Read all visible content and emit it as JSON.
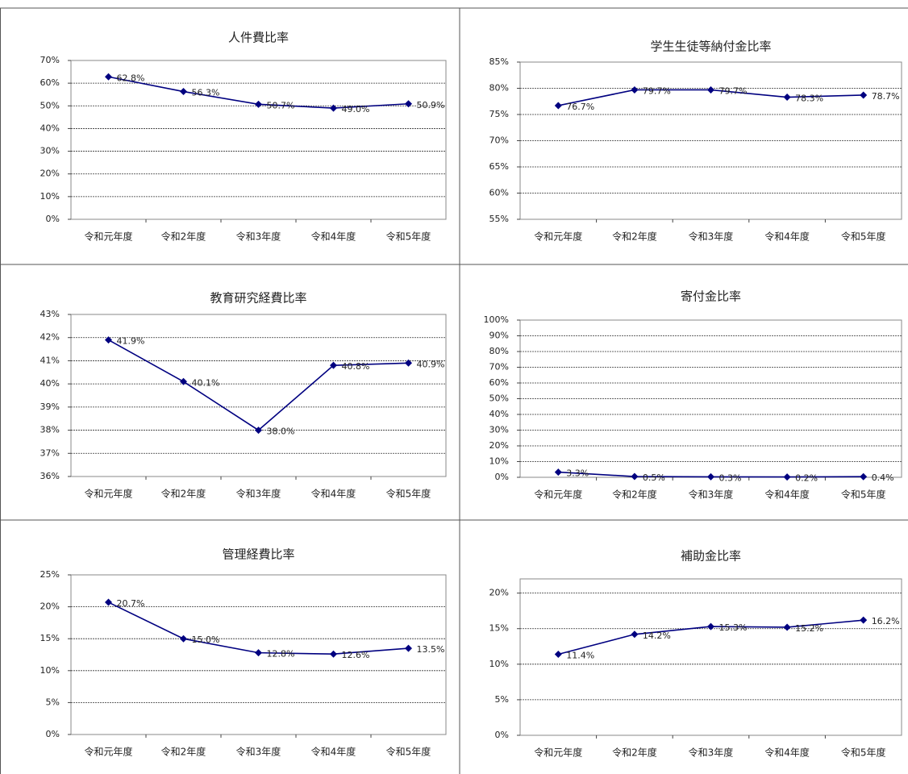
{
  "chart_data": [
    {
      "type": "line",
      "title": "人件費比率",
      "categories": [
        "令和元年度",
        "令和2年度",
        "令和3年度",
        "令和4年度",
        "令和5年度"
      ],
      "values": [
        62.8,
        56.3,
        50.7,
        49.0,
        50.9
      ],
      "value_labels": [
        "62.8%",
        "56.3%",
        "50.7%",
        "49.0%",
        "50.9%"
      ],
      "color": "#000080",
      "ylim": [
        0,
        70
      ],
      "yticks": [
        {
          "value": 0,
          "label": "0%"
        },
        {
          "value": 10,
          "label": "10%"
        },
        {
          "value": 20,
          "label": "20%"
        },
        {
          "value": 30,
          "label": "30%"
        },
        {
          "value": 40,
          "label": "40%"
        },
        {
          "value": 50,
          "label": "50%"
        },
        {
          "value": 60,
          "label": "60%"
        },
        {
          "value": 70,
          "label": "70%"
        }
      ],
      "grid": true
    },
    {
      "type": "line",
      "title": "学生生徒等納付金比率",
      "categories": [
        "令和元年度",
        "令和2年度",
        "令和3年度",
        "令和4年度",
        "令和5年度"
      ],
      "values": [
        76.7,
        79.7,
        79.7,
        78.3,
        78.7
      ],
      "value_labels": [
        "76.7%",
        "79.7%",
        "79.7%",
        "78.3%",
        "78.7%"
      ],
      "color": "#000080",
      "ylim": [
        55,
        85
      ],
      "yticks": [
        {
          "value": 55,
          "label": "55%"
        },
        {
          "value": 60,
          "label": "60%"
        },
        {
          "value": 65,
          "label": "65%"
        },
        {
          "value": 70,
          "label": "70%"
        },
        {
          "value": 75,
          "label": "75%"
        },
        {
          "value": 80,
          "label": "80%"
        },
        {
          "value": 85,
          "label": "85%"
        }
      ],
      "grid": true
    },
    {
      "type": "line",
      "title": "教育研究経費比率",
      "categories": [
        "令和元年度",
        "令和2年度",
        "令和3年度",
        "令和4年度",
        "令和5年度"
      ],
      "values": [
        41.9,
        40.1,
        38.0,
        40.8,
        40.9
      ],
      "value_labels": [
        "41.9%",
        "40.1%",
        "38.0%",
        "40.8%",
        "40.9%"
      ],
      "color": "#000080",
      "ylim": [
        36,
        43
      ],
      "yticks": [
        {
          "value": 36,
          "label": "36%"
        },
        {
          "value": 37,
          "label": "37%"
        },
        {
          "value": 38,
          "label": "38%"
        },
        {
          "value": 39,
          "label": "39%"
        },
        {
          "value": 40,
          "label": "40%"
        },
        {
          "value": 41,
          "label": "41%"
        },
        {
          "value": 42,
          "label": "42%"
        },
        {
          "value": 43,
          "label": "43%"
        }
      ],
      "grid": true
    },
    {
      "type": "line",
      "title": "寄付金比率",
      "categories": [
        "令和元年度",
        "令和2年度",
        "令和3年度",
        "令和4年度",
        "令和5年度"
      ],
      "values": [
        3.3,
        0.5,
        0.3,
        0.2,
        0.4
      ],
      "value_labels": [
        "3.3%",
        "0.5%",
        "0.3%",
        "0.2%",
        "0.4%"
      ],
      "color": "#000080",
      "ylim": [
        0,
        100
      ],
      "yticks": [
        {
          "value": 0,
          "label": "0%"
        },
        {
          "value": 10,
          "label": "10%"
        },
        {
          "value": 20,
          "label": "20%"
        },
        {
          "value": 30,
          "label": "30%"
        },
        {
          "value": 40,
          "label": "40%"
        },
        {
          "value": 50,
          "label": "50%"
        },
        {
          "value": 60,
          "label": "60%"
        },
        {
          "value": 70,
          "label": "70%"
        },
        {
          "value": 80,
          "label": "80%"
        },
        {
          "value": 90,
          "label": "90%"
        },
        {
          "value": 100,
          "label": "100%"
        }
      ],
      "grid": true
    },
    {
      "type": "line",
      "title": "管理経費比率",
      "categories": [
        "令和元年度",
        "令和2年度",
        "令和3年度",
        "令和4年度",
        "令和5年度"
      ],
      "values": [
        20.7,
        15.0,
        12.8,
        12.6,
        13.5
      ],
      "value_labels": [
        "20.7%",
        "15.0%",
        "12.8%",
        "12.6%",
        "13.5%"
      ],
      "color": "#000080",
      "ylim": [
        0,
        25
      ],
      "yticks": [
        {
          "value": 0,
          "label": "0%"
        },
        {
          "value": 5,
          "label": "5%"
        },
        {
          "value": 10,
          "label": "10%"
        },
        {
          "value": 15,
          "label": "15%"
        },
        {
          "value": 20,
          "label": "20%"
        },
        {
          "value": 25,
          "label": "25%"
        }
      ],
      "grid": true
    },
    {
      "type": "line",
      "title": "補助金比率",
      "categories": [
        "令和元年度",
        "令和2年度",
        "令和3年度",
        "令和4年度",
        "令和5年度"
      ],
      "values": [
        11.4,
        14.2,
        15.3,
        15.2,
        16.2
      ],
      "value_labels": [
        "11.4%",
        "14.2%",
        "15.3%",
        "15.2%",
        "16.2%"
      ],
      "color": "#000080",
      "ylim": [
        0,
        22
      ],
      "yticks": [
        {
          "value": 0,
          "label": "0%"
        },
        {
          "value": 5,
          "label": "5%"
        },
        {
          "value": 10,
          "label": "10%"
        },
        {
          "value": 15,
          "label": "15%"
        },
        {
          "value": 20,
          "label": "20%"
        }
      ],
      "grid": true
    }
  ]
}
